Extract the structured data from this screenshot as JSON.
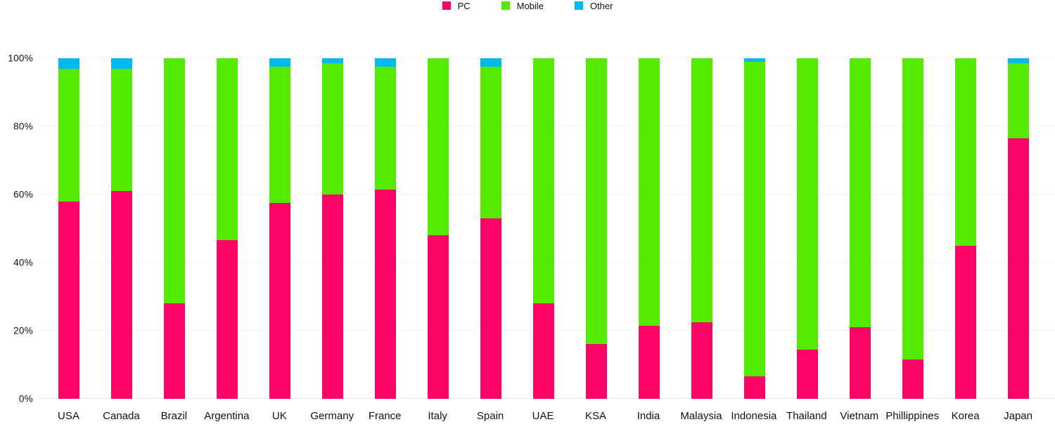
{
  "chart_data": {
    "type": "bar",
    "stacked": true,
    "stacking": "percent",
    "title": "",
    "xlabel": "",
    "ylabel": "",
    "ylim": [
      0,
      100
    ],
    "grid": true,
    "legend_position": "top-center",
    "yticks": [
      0,
      20,
      40,
      60,
      80,
      100
    ],
    "ytick_labels": [
      "0%",
      "20%",
      "40%",
      "60%",
      "80%",
      "100%"
    ],
    "categories": [
      "USA",
      "Canada",
      "Brazil",
      "Argentina",
      "UK",
      "Germany",
      "France",
      "Italy",
      "Spain",
      "UAE",
      "KSA",
      "India",
      "Malaysia",
      "Indonesia",
      "Thailand",
      "Vietnam",
      "Phillippines",
      "Korea",
      "Japan"
    ],
    "series": [
      {
        "name": "PC",
        "color": "#fb0466",
        "values": [
          58,
          61,
          28,
          46.5,
          57.5,
          60,
          61.5,
          48,
          53,
          28,
          16,
          21.5,
          22.5,
          6.5,
          14.5,
          21,
          11.5,
          45,
          76.5
        ]
      },
      {
        "name": "Mobile",
        "color": "#55eb00",
        "values": [
          39,
          36,
          72,
          53.5,
          40,
          38.5,
          36,
          52,
          44.5,
          72,
          84,
          78.5,
          77.5,
          92.5,
          85.5,
          79,
          88.5,
          55,
          22
        ]
      },
      {
        "name": "Other",
        "color": "#00b9f0",
        "values": [
          3,
          3,
          0,
          0,
          2.5,
          1.5,
          2.5,
          0,
          2.5,
          0,
          0,
          0,
          0,
          1,
          0,
          0,
          0,
          0,
          1.5
        ]
      }
    ]
  },
  "colors": {
    "background": "#ffffff",
    "gridline": "#f4f4f4",
    "baseline": "#e7e7e7",
    "text": "#111111"
  }
}
